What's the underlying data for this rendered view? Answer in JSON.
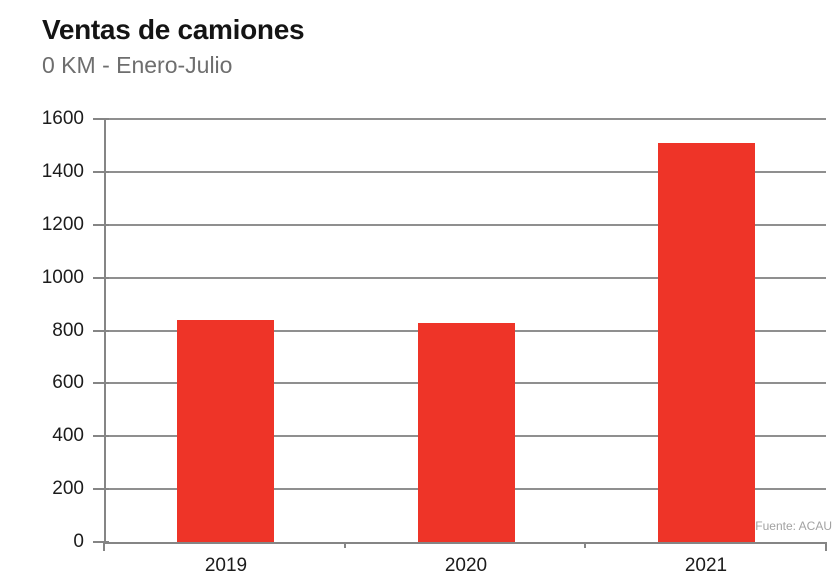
{
  "page": {
    "title": "Ventas de camiones",
    "subtitle": "0 KM - Enero-Julio",
    "source": "Fuente: ACAU"
  },
  "colors": {
    "bar": "#ee3428",
    "gridline": "#8f8f8f",
    "axis": "#858585",
    "tick_label": "#1c1c1c",
    "title": "#141414",
    "subtitle": "#6e6e6e",
    "source": "#a2a2a2"
  },
  "chart_data": {
    "type": "bar",
    "title": "Ventas de camiones",
    "subtitle": "0 KM - Enero-Julio",
    "categories": [
      "2019",
      "2020",
      "2021"
    ],
    "values": [
      840,
      830,
      1510
    ],
    "xlabel": "",
    "ylabel": "",
    "ylim": [
      0,
      1600
    ],
    "yticks": [
      0,
      200,
      400,
      600,
      800,
      1000,
      1200,
      1400,
      1600
    ],
    "grid": true,
    "legend": false,
    "bar_color": "#ee3428",
    "source": "Fuente: ACAU"
  }
}
